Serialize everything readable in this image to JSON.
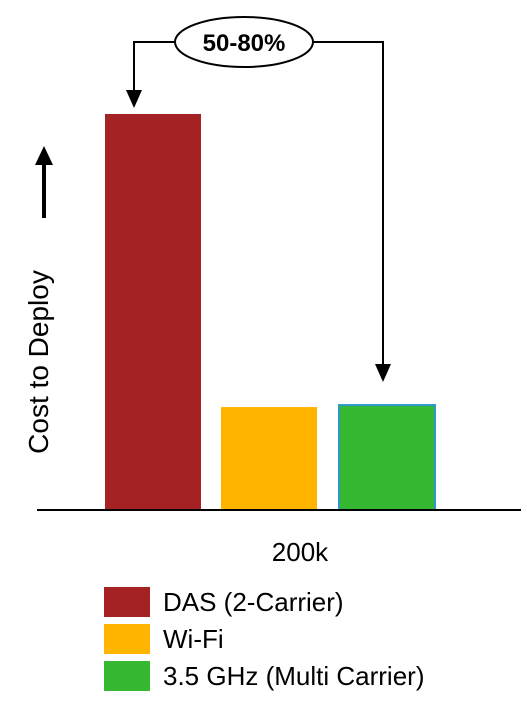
{
  "chart_data": {
    "type": "bar",
    "categories": [
      "200k"
    ],
    "series": [
      {
        "name": "DAS (2-Carrier)",
        "values": [
          100
        ],
        "color": "#a52224"
      },
      {
        "name": "Wi-Fi",
        "values": [
          26
        ],
        "color": "#ffb400"
      },
      {
        "name": "3.5 GHz (Multi Carrier)",
        "values": [
          26.5
        ],
        "color": "#37b833"
      }
    ],
    "ylabel": "Cost to Deploy",
    "xlabel": "",
    "title": "",
    "ylim": [
      0,
      110
    ],
    "y_ticks_shown": false,
    "grid": false,
    "legend_position": "bottom",
    "annotation": {
      "label": "50-80%",
      "from_series": "DAS (2-Carrier)",
      "to_series": "3.5 GHz (Multi Carrier)"
    },
    "up_arrow_beside_ylabel": true
  }
}
